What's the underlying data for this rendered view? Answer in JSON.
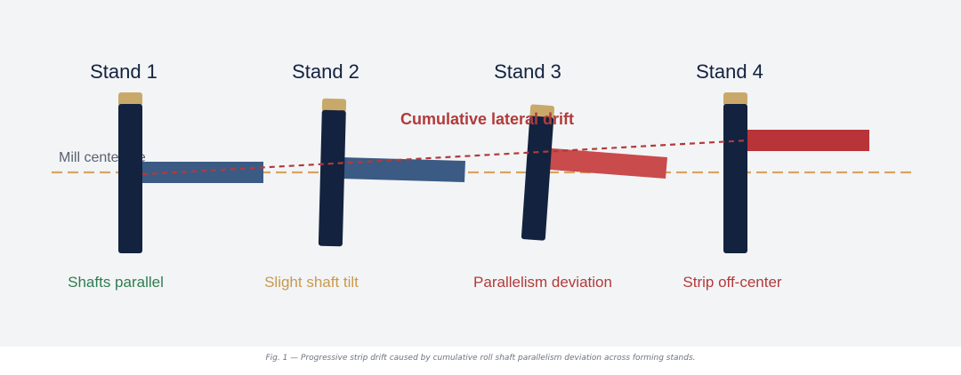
{
  "diagram": {
    "stands": [
      {
        "title": "Stand 1",
        "status": "Shafts parallel"
      },
      {
        "title": "Stand 2",
        "status": "Slight shaft tilt"
      },
      {
        "title": "Stand 3",
        "status": "Parallelism deviation"
      },
      {
        "title": "Stand 4",
        "status": "Strip off-center"
      }
    ],
    "centerline_label": "Mill centerline",
    "drift_label": "Cumulative lateral drift",
    "colors": {
      "background": "#f3f4f6",
      "roll_shaft": "#13223f",
      "shaft_cap": "#c9a96a",
      "strip_normal": "#3b5b85",
      "strip_drift": "#c0393b",
      "centerline": "#d6a461",
      "label_good": "#2f7d4f",
      "label_warn": "#c79a4c",
      "label_bad": "#b23a3a",
      "title": "#13223f",
      "muted_text": "#5a6270"
    }
  },
  "caption": "Fig. 1 — Progressive strip drift caused by cumulative roll shaft parallelism deviation across forming stands."
}
